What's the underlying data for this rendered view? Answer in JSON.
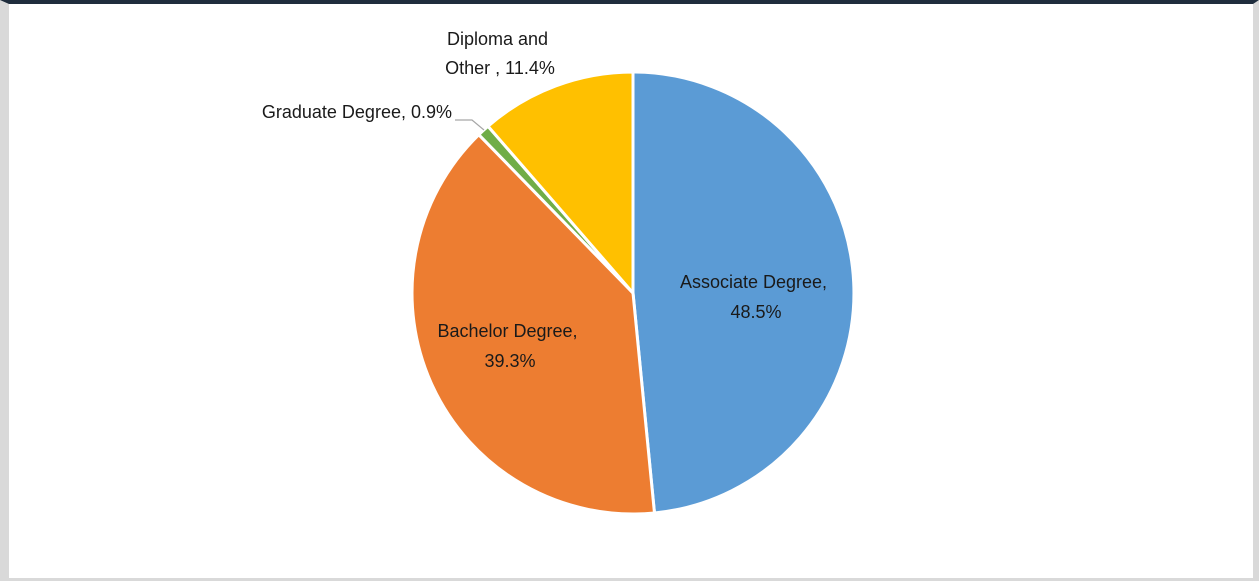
{
  "chart_data": {
    "type": "pie",
    "slices": [
      {
        "label": "Associate Degree",
        "value": 48.5,
        "color": "#5b9bd5",
        "label_line1": "Associate Degree,",
        "label_line2": "48.5%"
      },
      {
        "label": "Bachelor Degree",
        "value": 39.3,
        "color": "#ed7d31",
        "label_line1": "Bachelor Degree,",
        "label_line2": "39.3%"
      },
      {
        "label": "Graduate Degree",
        "value": 0.9,
        "color": "#70ad47",
        "label_line1": "Graduate Degree, 0.9%",
        "label_line2": ""
      },
      {
        "label": "Diploma and Other ",
        "value": 11.4,
        "color": "#ffc000",
        "label_line1": "Diploma and",
        "label_line2": "Other , 11.4%"
      }
    ],
    "start": "12 o'clock",
    "direction": "clockwise",
    "legend": "none"
  }
}
